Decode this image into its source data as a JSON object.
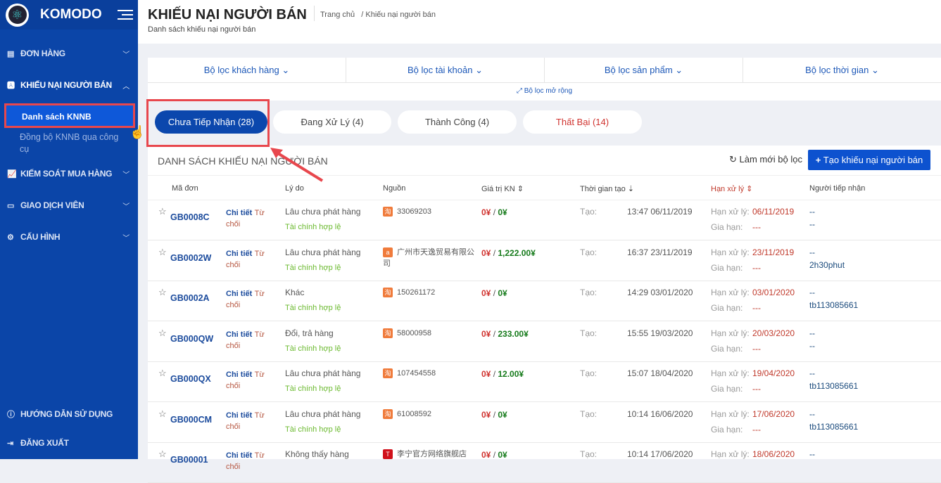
{
  "app": {
    "name": "KOMODO"
  },
  "sidebar": {
    "items": [
      {
        "label": "ĐƠN HÀNG",
        "icon": "clipboard-icon"
      },
      {
        "label": "KHIẾU NẠI NGƯỜI BÁN",
        "icon": "a-box-icon"
      },
      {
        "label": "KIẾM SOÁT MUA HÀNG",
        "icon": "chart-icon"
      },
      {
        "label": "GIAO DỊCH VIÊN",
        "icon": "id-card-icon"
      },
      {
        "label": "CẤU HÌNH",
        "icon": "gear-icon"
      }
    ],
    "sub_items": [
      "Danh sách KNNB",
      "Đồng bộ KNNB qua công cụ"
    ],
    "bottom": [
      {
        "label": "HƯỚNG DẪN SỬ DỤNG",
        "icon": "help-icon"
      },
      {
        "label": "ĐĂNG XUẤT",
        "icon": "logout-icon"
      }
    ]
  },
  "header": {
    "title": "KHIẾU NẠI NGƯỜI BÁN",
    "subtitle": "Danh sách khiếu nại người bán",
    "breadcrumb": [
      "Trang chủ",
      "/ Khiếu nại người bán"
    ]
  },
  "filters": {
    "items": [
      "Bộ lọc khách hàng",
      "Bộ lọc tài khoản",
      "Bộ lọc sản phẩm",
      "Bộ lọc thời gian"
    ],
    "extended": "Bộ lọc mở rộng"
  },
  "tabs": [
    {
      "label": "Chưa Tiếp Nhận (28)",
      "active": true
    },
    {
      "label": "Đang Xử Lý (4)"
    },
    {
      "label": "Thành Công (4)"
    },
    {
      "label": "Thất Bại (14)",
      "color": "#d0332f"
    }
  ],
  "list": {
    "title": "DANH SÁCH KHIẾU NẠI NGƯỜI BÁN",
    "refresh_label": "Làm mới bộ lọc",
    "create_label": "Tạo khiếu nại người bán",
    "columns": [
      "Mã đơn",
      "Lý do",
      "Nguồn",
      "Giá trị KN",
      "Thời gian tạo",
      "Hạn xử lý",
      "Người tiếp nhận"
    ],
    "detail_label": "Chi tiết",
    "reject_label": "Từ chối",
    "created_label": "Tạo:",
    "deadline_label": "Hạn xử lý:",
    "extend_label": "Gia hạn:",
    "rows": [
      {
        "code": "GB0008C",
        "reason": "Lâu chưa phát hàng",
        "status": "Tài chính hợp lệ",
        "src": "33069203",
        "src_icon": "taobao-icon",
        "v1": "0¥",
        "v2": "0¥",
        "time": "13:47 06/11/2019",
        "deadline": "06/11/2019",
        "extend": "---",
        "r1": "--",
        "r2": "--"
      },
      {
        "code": "GB0002W",
        "reason": "Lâu chưa phát hàng",
        "status": "Tài chính hợp lệ",
        "src": "广州市天逸贸易有限公司",
        "src_icon": "1688-icon",
        "v1": "0¥",
        "v2": "1,222.00¥",
        "time": "16:37 23/11/2019",
        "deadline": "23/11/2019",
        "extend": "---",
        "r1": "--",
        "r2": "2h30phut"
      },
      {
        "code": "GB0002A",
        "reason": "Khác",
        "status": "Tài chính hợp lệ",
        "src": "150261172",
        "src_icon": "taobao-icon",
        "v1": "0¥",
        "v2": "0¥",
        "time": "14:29 03/01/2020",
        "deadline": "03/01/2020",
        "extend": "---",
        "r1": "--",
        "r2": "tb113085661"
      },
      {
        "code": "GB000QW",
        "reason": "Đổi, trả hàng",
        "status": "Tài chính hợp lệ",
        "src": "58000958",
        "src_icon": "taobao-icon",
        "v1": "0¥",
        "v2": "233.00¥",
        "time": "15:55 19/03/2020",
        "deadline": "20/03/2020",
        "extend": "---",
        "r1": "--",
        "r2": "--"
      },
      {
        "code": "GB000QX",
        "reason": "Lâu chưa phát hàng",
        "status": "Tài chính hợp lệ",
        "src": "107454558",
        "src_icon": "taobao-icon",
        "v1": "0¥",
        "v2": "12.00¥",
        "time": "15:07 18/04/2020",
        "deadline": "19/04/2020",
        "extend": "---",
        "r1": "--",
        "r2": "tb113085661"
      },
      {
        "code": "GB000CM",
        "reason": "Lâu chưa phát hàng",
        "status": "Tài chính hợp lệ",
        "src": "61008592",
        "src_icon": "taobao-icon",
        "v1": "0¥",
        "v2": "0¥",
        "time": "10:14 16/06/2020",
        "deadline": "17/06/2020",
        "extend": "---",
        "r1": "--",
        "r2": "tb113085661"
      },
      {
        "code": "GB00001",
        "reason": "Không thấy hàng",
        "status": "",
        "src": "李宁官方网络旗舰店",
        "src_icon": "tmall-icon",
        "v1": "0¥",
        "v2": "0¥",
        "time": "10:14 17/06/2020",
        "deadline": "18/06/2020",
        "extend": "",
        "r1": "--",
        "r2": ""
      }
    ]
  },
  "colors": {
    "sidebar": "#0b45a8",
    "accent": "#0d52cf",
    "highlight": "#e8474d"
  }
}
